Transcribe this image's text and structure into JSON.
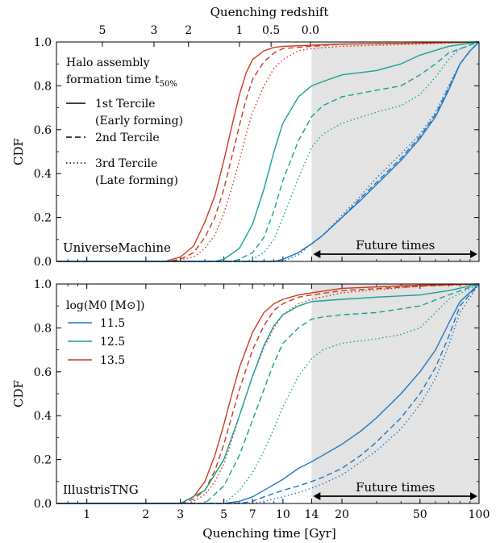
{
  "figure": {
    "top_axis_label": "Quenching redshift",
    "bottom_axis_label": "Quenching time [Gyr]",
    "colors": {
      "shade": "#e3e3e3",
      "m115": "#1f77c3",
      "m125": "#16a096",
      "m135": "#cc3a1e"
    }
  },
  "chart_data": [
    {
      "type": "line",
      "title": "",
      "panel_label": "UniverseMachine",
      "xlabel": "",
      "ylabel": "CDF",
      "x_scale": "log",
      "xlim": [
        0.7,
        100
      ],
      "ylim": [
        0,
        1
      ],
      "x_ticks": [
        1,
        2,
        3,
        5,
        7,
        10,
        14,
        20,
        50,
        100
      ],
      "y_ticks": [
        "0.0",
        "0.2",
        "0.4",
        "0.6",
        "0.8",
        "1.0"
      ],
      "top_axis": {
        "label": "Quenching redshift",
        "ticks": [
          {
            "label": "5",
            "t": 1.2
          },
          {
            "label": "3",
            "t": 2.2
          },
          {
            "label": "2",
            "t": 3.3
          },
          {
            "label": "1",
            "t": 6.0
          },
          {
            "label": "0.5",
            "t": 8.7
          },
          {
            "label": "0.0",
            "t": 13.8
          }
        ]
      },
      "shaded_region": {
        "from": 14,
        "to": 100,
        "label": "Future times"
      },
      "legend": {
        "title_line1": "Halo assembly",
        "title_line2": "formation time t",
        "title_sub": "50%",
        "entries": [
          {
            "style": "solid",
            "label_line1": "1st Tercile",
            "label_line2": "(Early forming)"
          },
          {
            "style": "dashed",
            "label_line1": "2nd Tercile",
            "label_line2": ""
          },
          {
            "style": "dotted",
            "label_line1": "3rd Tercile",
            "label_line2": "(Late forming)"
          }
        ],
        "position": "upper-left"
      },
      "series": [
        {
          "mass": "13.5",
          "tercile": 1,
          "x": [
            2.5,
            3.0,
            3.5,
            4.0,
            4.5,
            5.0,
            5.5,
            6.0,
            6.5,
            7.0,
            8.0,
            9.0,
            10.0,
            14.0,
            20.0,
            50.0,
            100.0
          ],
          "y": [
            0.0,
            0.02,
            0.07,
            0.18,
            0.3,
            0.46,
            0.62,
            0.76,
            0.86,
            0.92,
            0.96,
            0.975,
            0.98,
            0.985,
            0.99,
            0.995,
            1.0
          ]
        },
        {
          "mass": "13.5",
          "tercile": 2,
          "x": [
            2.6,
            3.0,
            3.5,
            4.0,
            4.5,
            5.0,
            5.5,
            6.0,
            6.5,
            7.0,
            8.0,
            9.0,
            10.0,
            14.0,
            20.0,
            50.0,
            100.0
          ],
          "y": [
            0.0,
            0.01,
            0.04,
            0.11,
            0.2,
            0.33,
            0.48,
            0.62,
            0.74,
            0.83,
            0.91,
            0.95,
            0.97,
            0.98,
            0.99,
            0.995,
            1.0
          ]
        },
        {
          "mass": "13.5",
          "tercile": 3,
          "x": [
            2.7,
            3.5,
            4.0,
            4.5,
            5.0,
            5.5,
            6.0,
            6.5,
            7.0,
            8.0,
            9.0,
            10.0,
            12.0,
            14.0,
            20.0,
            50.0,
            100.0
          ],
          "y": [
            0.0,
            0.02,
            0.06,
            0.12,
            0.22,
            0.34,
            0.46,
            0.58,
            0.68,
            0.8,
            0.88,
            0.92,
            0.96,
            0.97,
            0.98,
            0.99,
            1.0
          ]
        },
        {
          "mass": "12.5",
          "tercile": 1,
          "x": [
            4.5,
            5.0,
            6.0,
            7.0,
            8.0,
            9.0,
            10.0,
            12.0,
            14.0,
            16.0,
            20.0,
            30.0,
            40.0,
            50.0,
            70.0,
            100.0
          ],
          "y": [
            0.0,
            0.01,
            0.06,
            0.17,
            0.33,
            0.5,
            0.63,
            0.75,
            0.8,
            0.82,
            0.85,
            0.87,
            0.9,
            0.94,
            0.98,
            1.0
          ]
        },
        {
          "mass": "12.5",
          "tercile": 2,
          "x": [
            5.5,
            6.0,
            7.0,
            8.0,
            9.0,
            10.0,
            12.0,
            14.0,
            16.0,
            20.0,
            30.0,
            40.0,
            50.0,
            60.0,
            70.0,
            100.0
          ],
          "y": [
            0.0,
            0.01,
            0.04,
            0.11,
            0.23,
            0.37,
            0.55,
            0.66,
            0.71,
            0.75,
            0.78,
            0.8,
            0.85,
            0.9,
            0.95,
            1.0
          ]
        },
        {
          "mass": "12.5",
          "tercile": 3,
          "x": [
            6.5,
            7.0,
            8.0,
            9.0,
            10.0,
            12.0,
            14.0,
            16.0,
            20.0,
            30.0,
            40.0,
            50.0,
            60.0,
            70.0,
            80.0,
            100.0
          ],
          "y": [
            0.0,
            0.01,
            0.04,
            0.1,
            0.2,
            0.38,
            0.52,
            0.58,
            0.63,
            0.68,
            0.71,
            0.76,
            0.84,
            0.92,
            0.97,
            1.0
          ]
        },
        {
          "mass": "11.5",
          "tercile": 1,
          "x": [
            9.0,
            10.0,
            12.0,
            14.0,
            16.0,
            20.0,
            25.0,
            30.0,
            40.0,
            50.0,
            60.0,
            70.0,
            80.0,
            90.0,
            100.0
          ],
          "y": [
            0.0,
            0.01,
            0.04,
            0.08,
            0.12,
            0.2,
            0.28,
            0.35,
            0.46,
            0.56,
            0.66,
            0.78,
            0.9,
            0.96,
            1.0
          ]
        },
        {
          "mass": "11.5",
          "tercile": 2,
          "x": [
            9.5,
            10.0,
            12.0,
            14.0,
            16.0,
            20.0,
            25.0,
            30.0,
            40.0,
            50.0,
            60.0,
            70.0,
            80.0,
            90.0,
            100.0
          ],
          "y": [
            0.0,
            0.01,
            0.04,
            0.08,
            0.12,
            0.2,
            0.29,
            0.36,
            0.47,
            0.57,
            0.67,
            0.79,
            0.9,
            0.96,
            1.0
          ]
        },
        {
          "mass": "11.5",
          "tercile": 3,
          "x": [
            10.0,
            12.0,
            14.0,
            16.0,
            20.0,
            25.0,
            30.0,
            40.0,
            50.0,
            60.0,
            70.0,
            80.0,
            90.0,
            100.0
          ],
          "y": [
            0.0,
            0.03,
            0.08,
            0.12,
            0.21,
            0.3,
            0.38,
            0.49,
            0.58,
            0.68,
            0.8,
            0.9,
            0.96,
            1.0
          ]
        }
      ]
    },
    {
      "type": "line",
      "title": "",
      "panel_label": "IllustrisTNG",
      "xlabel": "Quenching time [Gyr]",
      "ylabel": "CDF",
      "x_scale": "log",
      "xlim": [
        0.7,
        100
      ],
      "ylim": [
        0,
        1
      ],
      "x_ticks": [
        1,
        2,
        3,
        5,
        7,
        10,
        14,
        20,
        50,
        100
      ],
      "y_ticks": [
        "0.0",
        "0.2",
        "0.4",
        "0.6",
        "0.8",
        "1.0"
      ],
      "shaded_region": {
        "from": 14,
        "to": 100,
        "label": "Future times"
      },
      "legend": {
        "title": "log(M0 [M⊙])",
        "entries": [
          "11.5",
          "12.5",
          "13.5"
        ],
        "position": "upper-left"
      },
      "series": [
        {
          "mass": "13.5",
          "tercile": 1,
          "x": [
            3.0,
            3.5,
            4.0,
            4.5,
            5.0,
            5.5,
            6.0,
            7.0,
            8.0,
            9.0,
            10.0,
            12.0,
            14.0,
            20.0,
            50.0,
            100.0
          ],
          "y": [
            0.0,
            0.03,
            0.1,
            0.22,
            0.36,
            0.5,
            0.62,
            0.78,
            0.87,
            0.91,
            0.93,
            0.95,
            0.96,
            0.98,
            0.995,
            1.0
          ]
        },
        {
          "mass": "13.5",
          "tercile": 2,
          "x": [
            3.0,
            3.5,
            4.0,
            4.5,
            5.0,
            5.5,
            6.0,
            7.0,
            8.0,
            9.0,
            10.0,
            12.0,
            14.0,
            20.0,
            50.0,
            100.0
          ],
          "y": [
            0.0,
            0.02,
            0.06,
            0.15,
            0.27,
            0.4,
            0.52,
            0.7,
            0.81,
            0.88,
            0.91,
            0.94,
            0.95,
            0.97,
            0.99,
            1.0
          ]
        },
        {
          "mass": "13.5",
          "tercile": 3,
          "x": [
            3.2,
            3.5,
            4.0,
            4.5,
            5.0,
            5.5,
            6.0,
            7.0,
            8.0,
            9.0,
            10.0,
            12.0,
            14.0,
            20.0,
            50.0,
            100.0
          ],
          "y": [
            0.0,
            0.01,
            0.04,
            0.1,
            0.18,
            0.29,
            0.4,
            0.58,
            0.71,
            0.8,
            0.86,
            0.91,
            0.93,
            0.96,
            0.99,
            1.0
          ]
        },
        {
          "mass": "12.5",
          "tercile": 1,
          "x": [
            3.0,
            4.0,
            5.0,
            6.0,
            7.0,
            8.0,
            9.0,
            10.0,
            12.0,
            14.0,
            20.0,
            30.0,
            50.0,
            70.0,
            100.0
          ],
          "y": [
            0.0,
            0.06,
            0.2,
            0.4,
            0.58,
            0.72,
            0.81,
            0.86,
            0.9,
            0.92,
            0.93,
            0.94,
            0.95,
            0.97,
            1.0
          ]
        },
        {
          "mass": "12.5",
          "tercile": 2,
          "x": [
            4.0,
            5.0,
            6.0,
            7.0,
            8.0,
            9.0,
            10.0,
            12.0,
            14.0,
            16.0,
            20.0,
            30.0,
            50.0,
            70.0,
            100.0
          ],
          "y": [
            0.0,
            0.08,
            0.22,
            0.38,
            0.52,
            0.64,
            0.73,
            0.8,
            0.84,
            0.85,
            0.86,
            0.87,
            0.9,
            0.95,
            1.0
          ]
        },
        {
          "mass": "12.5",
          "tercile": 3,
          "x": [
            5.0,
            6.0,
            7.0,
            8.0,
            9.0,
            10.0,
            12.0,
            14.0,
            16.0,
            20.0,
            30.0,
            40.0,
            50.0,
            60.0,
            70.0,
            100.0
          ],
          "y": [
            0.0,
            0.06,
            0.14,
            0.24,
            0.34,
            0.44,
            0.58,
            0.66,
            0.7,
            0.73,
            0.75,
            0.77,
            0.8,
            0.87,
            0.93,
            1.0
          ]
        },
        {
          "mass": "11.5",
          "tercile": 1,
          "x": [
            5.0,
            6.0,
            7.0,
            8.0,
            10.0,
            12.0,
            14.0,
            16.0,
            20.0,
            25.0,
            30.0,
            40.0,
            50.0,
            60.0,
            70.0,
            80.0,
            100.0
          ],
          "y": [
            0.0,
            0.01,
            0.03,
            0.06,
            0.11,
            0.16,
            0.19,
            0.22,
            0.27,
            0.33,
            0.39,
            0.5,
            0.6,
            0.7,
            0.82,
            0.92,
            1.0
          ]
        },
        {
          "mass": "11.5",
          "tercile": 2,
          "x": [
            6.0,
            7.0,
            8.0,
            10.0,
            12.0,
            14.0,
            16.0,
            20.0,
            25.0,
            30.0,
            40.0,
            50.0,
            60.0,
            70.0,
            80.0,
            100.0
          ],
          "y": [
            0.0,
            0.01,
            0.03,
            0.06,
            0.08,
            0.1,
            0.12,
            0.16,
            0.22,
            0.28,
            0.39,
            0.5,
            0.62,
            0.76,
            0.9,
            1.0
          ]
        },
        {
          "mass": "11.5",
          "tercile": 3,
          "x": [
            7.0,
            8.0,
            10.0,
            12.0,
            14.0,
            16.0,
            20.0,
            25.0,
            30.0,
            40.0,
            50.0,
            60.0,
            70.0,
            80.0,
            100.0
          ],
          "y": [
            0.0,
            0.01,
            0.03,
            0.05,
            0.07,
            0.09,
            0.13,
            0.19,
            0.24,
            0.34,
            0.45,
            0.57,
            0.72,
            0.87,
            1.0
          ]
        }
      ]
    }
  ]
}
